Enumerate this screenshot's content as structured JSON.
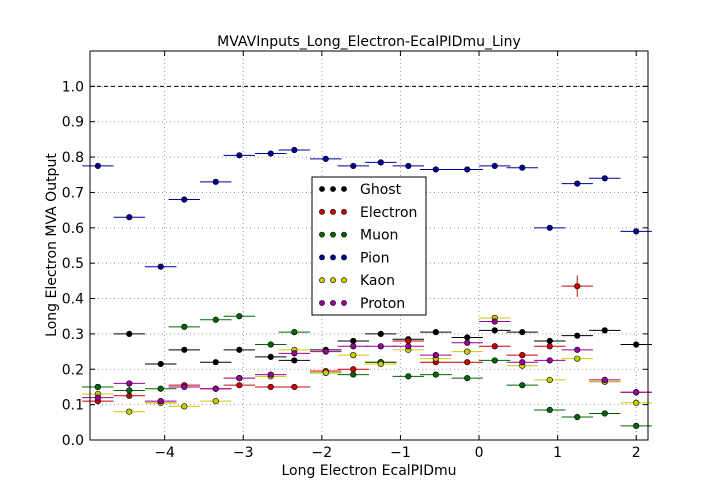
{
  "chart_data": {
    "type": "scatter",
    "title": "MVAVInputs_Long_Electron-EcalPIDmu_Liny",
    "xlabel": "Long Electron EcalPIDmu",
    "ylabel": "Long Electron MVA Output",
    "xlim": [
      -4.95,
      2.15
    ],
    "ylim": [
      0.0,
      1.1
    ],
    "x_ticks": [
      -4,
      -3,
      -2,
      -1,
      0,
      1,
      2
    ],
    "x_tick_labels": [
      "−4",
      "−3",
      "−2",
      "−1",
      "0",
      "1",
      "2"
    ],
    "y_ticks": [
      0.0,
      0.1,
      0.2,
      0.3,
      0.4,
      0.5,
      0.6,
      0.7,
      0.8,
      0.9,
      1.0
    ],
    "y_tick_labels": [
      "0.0",
      "0.1",
      "0.2",
      "0.3",
      "0.4",
      "0.5",
      "0.6",
      "0.7",
      "0.8",
      "0.9",
      "1.0"
    ],
    "grid": true,
    "reference_line": 1.0,
    "bin_half_width": 0.2,
    "legend_position": "center",
    "x": [
      -4.85,
      -4.45,
      -4.05,
      -3.75,
      -3.35,
      -3.05,
      -2.65,
      -2.35,
      -1.95,
      -1.6,
      -1.25,
      -0.9,
      -0.55,
      -0.15,
      0.2,
      0.55,
      0.9,
      1.25,
      1.6,
      2.0
    ],
    "series": [
      {
        "name": "Ghost",
        "color": "#000000",
        "values": [
          0.15,
          0.3,
          0.215,
          0.255,
          0.22,
          0.255,
          0.235,
          0.225,
          0.255,
          0.28,
          0.3,
          0.285,
          0.305,
          0.29,
          0.31,
          0.305,
          0.28,
          0.295,
          0.31,
          0.27
        ]
      },
      {
        "name": "Electron",
        "color": "#cc0000",
        "values": [
          0.11,
          0.125,
          0.105,
          0.155,
          0.145,
          0.155,
          0.15,
          0.15,
          0.195,
          0.2,
          0.22,
          0.28,
          0.22,
          0.22,
          0.265,
          0.24,
          0.265,
          0.435,
          0.165,
          0.135
        ],
        "errors": [
          0.0,
          0.0,
          0.0,
          0.0,
          0.0,
          0.0,
          0.0,
          0.0,
          0.0,
          0.0,
          0.0,
          0.0,
          0.0,
          0.0,
          0.0,
          0.0,
          0.0,
          0.03,
          0.0,
          0.0
        ]
      },
      {
        "name": "Muon",
        "color": "#006600",
        "values": [
          0.15,
          0.14,
          0.145,
          0.32,
          0.34,
          0.35,
          0.27,
          0.305,
          0.19,
          0.185,
          0.22,
          0.18,
          0.185,
          0.175,
          0.225,
          0.155,
          0.085,
          0.065,
          0.075,
          0.04
        ],
        "errors": [
          0.0,
          0.02,
          0.0,
          0.0,
          0.0,
          0.0,
          0.0,
          0.0,
          0.0,
          0.0,
          0.0,
          0.0,
          0.0,
          0.0,
          0.0,
          0.0,
          0.0,
          0.0,
          0.0,
          0.0
        ]
      },
      {
        "name": "Pion",
        "color": "#000099",
        "values": [
          0.775,
          0.63,
          0.49,
          0.68,
          0.73,
          0.805,
          0.81,
          0.82,
          0.795,
          0.775,
          0.785,
          0.775,
          0.765,
          0.765,
          0.775,
          0.77,
          0.6,
          0.725,
          0.74,
          0.59
        ]
      },
      {
        "name": "Kaon",
        "color": "#cccc00",
        "values": [
          0.13,
          0.08,
          0.105,
          0.095,
          0.11,
          0.175,
          0.18,
          0.255,
          0.19,
          0.24,
          0.215,
          0.255,
          0.23,
          0.25,
          0.345,
          0.21,
          0.17,
          0.23,
          0.165,
          0.105
        ]
      },
      {
        "name": "Proton",
        "color": "#990099",
        "values": [
          0.12,
          0.16,
          0.11,
          0.15,
          0.145,
          0.175,
          0.185,
          0.245,
          0.25,
          0.265,
          0.265,
          0.265,
          0.24,
          0.275,
          0.335,
          0.22,
          0.225,
          0.255,
          0.17,
          0.135
        ]
      }
    ]
  }
}
